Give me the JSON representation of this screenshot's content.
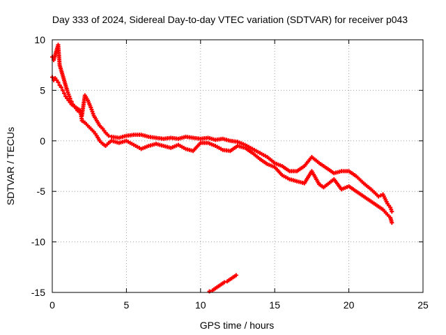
{
  "chart_data": {
    "type": "scatter",
    "title": "Day 333 of 2024, Sidereal Day-to-day VTEC variation (SDTVAR) for receiver p043",
    "xlabel": "GPS time / hours",
    "ylabel": "SDTVAR / TECUs",
    "xlim": [
      0,
      25
    ],
    "ylim": [
      -15,
      10
    ],
    "grid": true,
    "marker": "plus",
    "color": "#ff0000",
    "x_ticks": [
      0,
      5,
      10,
      15,
      20,
      25
    ],
    "y_ticks": [
      10,
      5,
      0,
      -5,
      -10,
      -15
    ],
    "series": [
      {
        "name": "SDTVAR-upper",
        "x": [
          0.0,
          0.1,
          0.2,
          0.3,
          0.4,
          0.5,
          0.6,
          0.7,
          0.8,
          0.9,
          1.0,
          1.1,
          1.2,
          1.3,
          1.4,
          1.5,
          1.6,
          1.7,
          1.8,
          1.9,
          2.0,
          2.2,
          2.4,
          2.6,
          2.8,
          3.0,
          3.2,
          3.4,
          3.6,
          3.8,
          4.0,
          4.5,
          5.0,
          5.5,
          6.0,
          6.5,
          7.0,
          7.5,
          8.0,
          8.5,
          9.0,
          9.5,
          10.0,
          10.5,
          11.0,
          11.5,
          12.0,
          12.5,
          13.0,
          13.5,
          14.0,
          14.5,
          15.0,
          15.5,
          16.0,
          16.5,
          17.0,
          17.5,
          18.0,
          18.3,
          19.0,
          19.5,
          20.0,
          20.5,
          21.0,
          21.5,
          22.0,
          22.3,
          22.6,
          22.8,
          22.9
        ],
        "y": [
          8.3,
          8.0,
          8.5,
          9.0,
          9.5,
          7.5,
          7.0,
          6.5,
          6.0,
          5.5,
          5.0,
          4.6,
          4.2,
          3.9,
          3.6,
          3.4,
          3.2,
          3.0,
          2.9,
          2.8,
          2.5,
          4.5,
          4.0,
          3.3,
          2.5,
          2.0,
          1.5,
          1.2,
          0.8,
          0.5,
          0.4,
          0.3,
          0.5,
          0.6,
          0.6,
          0.4,
          0.3,
          0.2,
          0.3,
          0.2,
          0.4,
          0.3,
          0.2,
          0.3,
          0.1,
          0.2,
          0.0,
          -0.1,
          -0.4,
          -0.8,
          -1.2,
          -1.6,
          -2.2,
          -2.5,
          -3.0,
          -3.0,
          -2.5,
          -1.6,
          -2.2,
          -2.5,
          -3.2,
          -3.0,
          -3.0,
          -3.5,
          -4.2,
          -4.8,
          -5.5,
          -5.3,
          -6.2,
          -6.6,
          -7.0
        ]
      },
      {
        "name": "SDTVAR-lower",
        "x": [
          0.0,
          0.1,
          0.2,
          0.3,
          0.4,
          0.5,
          0.6,
          0.7,
          0.8,
          0.9,
          1.0,
          1.1,
          1.2,
          1.3,
          1.4,
          1.5,
          1.6,
          1.7,
          1.8,
          1.9,
          2.0,
          2.2,
          2.4,
          2.6,
          2.8,
          3.0,
          3.2,
          3.4,
          3.6,
          3.8,
          4.0,
          4.5,
          5.0,
          5.5,
          6.0,
          6.5,
          7.0,
          7.5,
          8.0,
          8.5,
          9.0,
          9.5,
          10.0,
          10.5,
          11.0,
          11.5,
          12.0,
          12.5,
          13.0,
          13.5,
          14.0,
          14.5,
          15.0,
          15.5,
          16.0,
          16.5,
          17.0,
          17.5,
          18.0,
          18.3,
          19.0,
          19.5,
          20.0,
          20.5,
          21.0,
          21.5,
          22.0,
          22.3,
          22.6,
          22.8,
          22.9
        ],
        "y": [
          6.3,
          6.0,
          6.2,
          6.0,
          5.8,
          5.5,
          5.3,
          5.0,
          4.7,
          4.4,
          4.2,
          4.0,
          3.8,
          3.6,
          3.5,
          3.4,
          3.3,
          3.2,
          3.1,
          3.0,
          2.0,
          1.8,
          1.5,
          1.2,
          0.9,
          0.5,
          0.0,
          -0.3,
          -0.5,
          -0.2,
          0.0,
          -0.2,
          0.0,
          -0.4,
          -0.8,
          -0.5,
          -0.3,
          -0.5,
          -0.7,
          -0.4,
          -0.8,
          -1.0,
          -0.2,
          -0.2,
          -0.5,
          -0.9,
          -1.0,
          -0.5,
          -0.7,
          -1.2,
          -1.8,
          -2.3,
          -2.6,
          -3.4,
          -3.8,
          -4.0,
          -4.2,
          -3.0,
          -4.3,
          -4.6,
          -3.8,
          -4.8,
          -4.5,
          -5.0,
          -5.5,
          -6.0,
          -6.5,
          -6.8,
          -7.3,
          -7.6,
          -8.1
        ]
      },
      {
        "name": "SDTVAR-isolated",
        "x": [
          10.6,
          10.8,
          11.0,
          11.2,
          11.4,
          11.6,
          11.8,
          12.0,
          12.2,
          12.4
        ],
        "y": [
          -14.9,
          -14.8,
          -14.6,
          -14.4,
          -14.2,
          -14.0,
          -13.9,
          -13.7,
          -13.5,
          -13.3
        ]
      }
    ]
  }
}
